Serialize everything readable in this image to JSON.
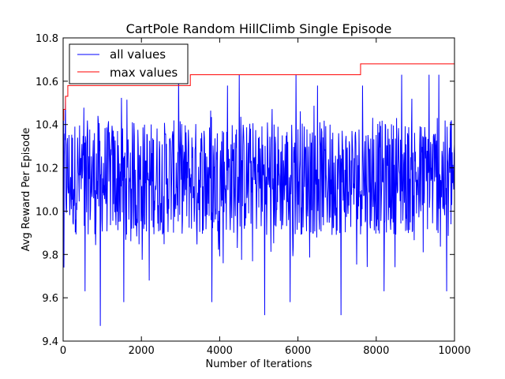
{
  "chart_data": {
    "type": "line",
    "title": "CartPole Random HillClimb Single Episode",
    "xlabel": "Number of Iterations",
    "ylabel": "Avg Reward Per Episode",
    "xlim": [
      0,
      10000
    ],
    "ylim": [
      9.4,
      10.8
    ],
    "xticks": [
      0,
      2000,
      4000,
      6000,
      8000,
      10000
    ],
    "xtick_labels": [
      "0",
      "2000",
      "4000",
      "6000",
      "8000",
      "10000"
    ],
    "yticks": [
      9.4,
      9.6,
      9.8,
      10.0,
      10.2,
      10.4,
      10.6,
      10.8
    ],
    "ytick_labels": [
      "9.4",
      "9.6",
      "9.8",
      "10.0",
      "10.2",
      "10.4",
      "10.6",
      "10.8"
    ],
    "grid": false,
    "legend_position": "top-left",
    "series": [
      {
        "name": "all values",
        "color": "#0000ff",
        "style": "noisy",
        "typical_range": [
          9.89,
          10.42
        ],
        "outer_range": [
          9.74,
          10.53
        ],
        "spikes": [
          {
            "x": 20,
            "y": 9.74
          },
          {
            "x": 60,
            "y": 10.53
          },
          {
            "x": 560,
            "y": 9.63
          },
          {
            "x": 950,
            "y": 9.47
          },
          {
            "x": 1550,
            "y": 9.58
          },
          {
            "x": 2200,
            "y": 9.68
          },
          {
            "x": 2950,
            "y": 10.63
          },
          {
            "x": 3800,
            "y": 9.58
          },
          {
            "x": 4200,
            "y": 10.58
          },
          {
            "x": 4500,
            "y": 10.63
          },
          {
            "x": 5150,
            "y": 9.52
          },
          {
            "x": 5800,
            "y": 9.58
          },
          {
            "x": 5950,
            "y": 10.63
          },
          {
            "x": 6500,
            "y": 10.58
          },
          {
            "x": 7100,
            "y": 9.52
          },
          {
            "x": 7650,
            "y": 10.58
          },
          {
            "x": 8200,
            "y": 9.63
          },
          {
            "x": 8650,
            "y": 10.63
          },
          {
            "x": 9350,
            "y": 10.63
          },
          {
            "x": 9600,
            "y": 10.63
          },
          {
            "x": 9800,
            "y": 9.63
          }
        ]
      },
      {
        "name": "max values",
        "color": "#ff0000",
        "style": "step",
        "x": [
          0,
          15,
          60,
          120,
          380,
          3250,
          7600,
          10000
        ],
        "y": [
          10.42,
          10.47,
          10.53,
          10.58,
          10.58,
          10.63,
          10.68,
          10.68
        ]
      }
    ]
  }
}
